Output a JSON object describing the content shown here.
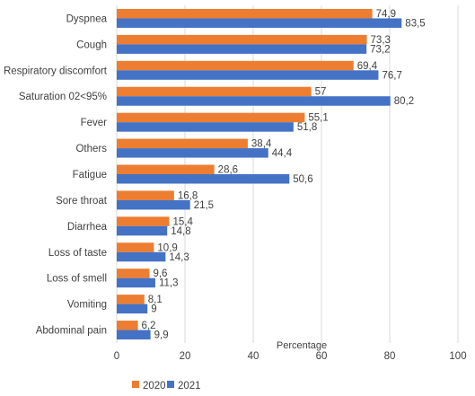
{
  "chart_data": {
    "type": "bar",
    "orientation": "horizontal",
    "xlabel": "Percentage",
    "xlim": [
      0,
      100
    ],
    "xticks": [
      "0",
      "20",
      "40",
      "60",
      "80",
      "100"
    ],
    "grid": true,
    "legend_position": "bottom",
    "categories": [
      "Dyspnea",
      "Cough",
      "Respiratory discomfort",
      "Saturation 02<95%",
      "Fever",
      "Others",
      "Fatigue",
      "Sore throat",
      "Diarrhea",
      "Loss of taste",
      "Loss of smell",
      "Vomiting",
      "Abdominal pain"
    ],
    "series": [
      {
        "name": "2020",
        "color": "#ED7D31",
        "values": [
          74.9,
          73.3,
          69.4,
          57,
          55.1,
          38.4,
          28.6,
          16.8,
          15.4,
          10.9,
          9.6,
          8.1,
          6.2
        ],
        "labels": [
          "74,9",
          "73,3",
          "69,4",
          "57",
          "55,1",
          "38,4",
          "28,6",
          "16,8",
          "15,4",
          "10,9",
          "9,6",
          "8,1",
          "6,2"
        ]
      },
      {
        "name": "2021",
        "color": "#4472C4",
        "values": [
          83.5,
          73.2,
          76.7,
          80.2,
          51.8,
          44.4,
          50.6,
          21.5,
          14.8,
          14.3,
          11.3,
          9,
          9.9
        ],
        "labels": [
          "83,5",
          "73,2",
          "76,7",
          "80,2",
          "51,8",
          "44,4",
          "50,6",
          "21,5",
          "14,8",
          "14,3",
          "11,3",
          "9",
          "9,9"
        ]
      }
    ]
  }
}
